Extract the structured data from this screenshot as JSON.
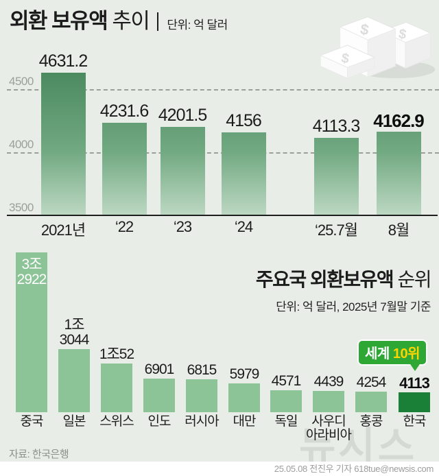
{
  "chart_data": [
    {
      "type": "bar",
      "title_bold": "외환 보유액",
      "title_regular": "추이",
      "unit": "단위: 억 달러",
      "categories": [
        "2021년",
        "‘22",
        "‘23",
        "‘24",
        "‘25.7월",
        "8월"
      ],
      "values": [
        4631.2,
        4231.6,
        4201.5,
        4156,
        4113.3,
        4162.9
      ],
      "value_labels": [
        "4631.2",
        "4231.6",
        "4201.5",
        "4156",
        "4113.3",
        "4162.9"
      ],
      "bold_index": 5,
      "ylim": [
        3500,
        4700
      ],
      "yticks": [
        "4500",
        "4000",
        "3500"
      ],
      "grid": "dashed"
    },
    {
      "type": "bar",
      "title_bold": "주요국 외환보유액",
      "title_regular": "순위",
      "unit": "단위: 억 달러, 2025년 7월말 기준",
      "categories": [
        "중국",
        "일본",
        "스위스",
        "인도",
        "러시아",
        "대만",
        "독일",
        "사우디아라비아",
        "홍콩",
        "한국"
      ],
      "category_lines": [
        [
          "중국"
        ],
        [
          "일본"
        ],
        [
          "스위스"
        ],
        [
          "인도"
        ],
        [
          "러시아"
        ],
        [
          "대만"
        ],
        [
          "독일"
        ],
        [
          "사우디",
          "아라비아"
        ],
        [
          "홍콩"
        ],
        [
          "한국"
        ]
      ],
      "values": [
        32922,
        13044,
        10052,
        6901,
        6815,
        5979,
        4571,
        4439,
        4254,
        4113
      ],
      "value_label_lines": [
        [
          "3조",
          "2922"
        ],
        [
          "1조",
          "3044"
        ],
        [
          "1조52"
        ],
        [
          "6901"
        ],
        [
          "6815"
        ],
        [
          "5979"
        ],
        [
          "4571"
        ],
        [
          "4439"
        ],
        [
          "4254"
        ],
        [
          "4113"
        ]
      ],
      "inside_label_index": 0,
      "highlight_index": 9,
      "annotation_white": "세계",
      "annotation_yellow": "10위"
    }
  ],
  "colors": {
    "background": "#e9ede8",
    "bar_gradient_top": "#4c8a60",
    "bar_gradient_bottom": "#bdd8c3",
    "bar_light_green": "#8cc497",
    "bar_highlight_green": "#1a8038",
    "badge_green": "#2ea735",
    "badge_yellow": "#ffd400",
    "grid_gray": "#99a099",
    "text_dark": "#1c1c1c",
    "text_gray": "#8b918b"
  },
  "icons": {
    "money_stack": "money-stack-icon",
    "dollar_glyph": "$"
  },
  "footer": {
    "source": "자료: 한국은행",
    "credit": "25.05.08 전진우 기자 618tue@newsis.com"
  },
  "watermark": "뉴시스"
}
